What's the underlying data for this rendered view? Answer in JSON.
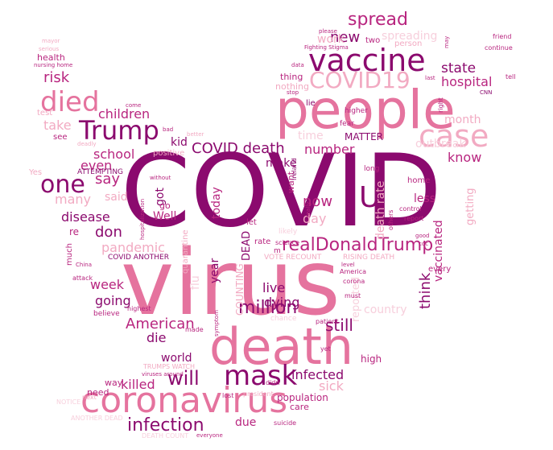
{
  "colors": {
    "dark": "#8b0a6e",
    "mid": "#b8257f",
    "pink": "#e5739e",
    "light": "#f2aac2",
    "pale": "#f7cfdc"
  },
  "words": [
    {
      "text": "COVID",
      "color": "dark",
      "vertical": false
    },
    {
      "text": "virus",
      "color": "pink",
      "vertical": false
    },
    {
      "text": "people",
      "color": "pink",
      "vertical": false
    },
    {
      "text": "death",
      "color": "pink",
      "vertical": false
    },
    {
      "text": "coronavirus",
      "color": "pink",
      "vertical": false
    },
    {
      "text": "vaccine",
      "color": "dark",
      "vertical": false
    },
    {
      "text": "COVID19",
      "color": "light",
      "vertical": false
    },
    {
      "text": "case",
      "color": "light",
      "vertical": false
    },
    {
      "text": "died",
      "color": "pink",
      "vertical": false
    },
    {
      "text": "Trump",
      "color": "dark",
      "vertical": false
    },
    {
      "text": "mask",
      "color": "dark",
      "vertical": false
    },
    {
      "text": "one",
      "color": "dark",
      "vertical": false
    },
    {
      "text": "U",
      "color": "dark",
      "vertical": false
    },
    {
      "text": "realDonaldTrump",
      "color": "mid",
      "vertical": false
    },
    {
      "text": "spread",
      "color": "mid",
      "vertical": false
    },
    {
      "text": "new",
      "color": "dark",
      "vertical": false
    },
    {
      "text": "COVID death",
      "color": "dark",
      "vertical": false
    },
    {
      "text": "infection",
      "color": "dark",
      "vertical": false
    },
    {
      "text": "million",
      "color": "dark",
      "vertical": false
    },
    {
      "text": "American",
      "color": "mid",
      "vertical": false
    },
    {
      "text": "children",
      "color": "mid",
      "vertical": false
    },
    {
      "text": "state",
      "color": "dark",
      "vertical": false
    },
    {
      "text": "hospital",
      "color": "mid",
      "vertical": false
    },
    {
      "text": "risk",
      "color": "mid",
      "vertical": false
    },
    {
      "text": "will",
      "color": "dark",
      "vertical": false
    },
    {
      "text": "killed",
      "color": "mid",
      "vertical": false
    },
    {
      "text": "infected",
      "color": "dark",
      "vertical": false
    },
    {
      "text": "sick",
      "color": "light",
      "vertical": false
    },
    {
      "text": "still",
      "color": "dark",
      "vertical": false
    },
    {
      "text": "know",
      "color": "mid",
      "vertical": false
    },
    {
      "text": "month",
      "color": "light",
      "vertical": false
    },
    {
      "text": "number",
      "color": "mid",
      "vertical": false
    },
    {
      "text": "MATTER",
      "color": "dark",
      "vertical": false
    },
    {
      "text": "school",
      "color": "mid",
      "vertical": false
    },
    {
      "text": "kid",
      "color": "dark",
      "vertical": false
    },
    {
      "text": "even",
      "color": "mid",
      "vertical": false
    },
    {
      "text": "say",
      "color": "mid",
      "vertical": false
    },
    {
      "text": "many",
      "color": "light",
      "vertical": false
    },
    {
      "text": "said",
      "color": "light",
      "vertical": false
    },
    {
      "text": "disease",
      "color": "dark",
      "vertical": false
    },
    {
      "text": "don",
      "color": "dark",
      "vertical": false
    },
    {
      "text": "pandemic",
      "color": "light",
      "vertical": false
    },
    {
      "text": "week",
      "color": "mid",
      "vertical": false
    },
    {
      "text": "going",
      "color": "dark",
      "vertical": false
    },
    {
      "text": "die",
      "color": "dark",
      "vertical": false
    },
    {
      "text": "world",
      "color": "dark",
      "vertical": false
    },
    {
      "text": "Well",
      "color": "mid",
      "vertical": false
    },
    {
      "text": "live",
      "color": "dark",
      "vertical": false
    },
    {
      "text": "dying",
      "color": "dark",
      "vertical": false
    },
    {
      "text": "think",
      "color": "dark",
      "vertical": true
    },
    {
      "text": "now",
      "color": "mid",
      "vertical": false
    },
    {
      "text": "day",
      "color": "light",
      "vertical": false
    },
    {
      "text": "less",
      "color": "mid",
      "vertical": false
    },
    {
      "text": "make",
      "color": "dark",
      "vertical": false
    },
    {
      "text": "got",
      "color": "dark",
      "vertical": true
    },
    {
      "text": "today",
      "color": "mid",
      "vertical": true
    },
    {
      "text": "year",
      "color": "dark",
      "vertical": true
    },
    {
      "text": "death rate",
      "color": "light",
      "vertical": true
    },
    {
      "text": "vaccinated",
      "color": "mid",
      "vertical": true
    },
    {
      "text": "getting",
      "color": "light",
      "vertical": true
    },
    {
      "text": "work",
      "color": "light",
      "vertical": false
    },
    {
      "text": "spreading",
      "color": "pale",
      "vertical": false
    },
    {
      "text": "take",
      "color": "light",
      "vertical": false
    },
    {
      "text": "time",
      "color": "pale",
      "vertical": false
    },
    {
      "text": "outbreak",
      "color": "pale",
      "vertical": false
    },
    {
      "text": "country",
      "color": "pale",
      "vertical": false
    },
    {
      "text": "reported",
      "color": "pale",
      "vertical": true
    },
    {
      "text": "DEAD",
      "color": "dark",
      "vertical": true
    },
    {
      "text": "flu",
      "color": "pale",
      "vertical": true
    },
    {
      "text": "COUNTING",
      "color": "light",
      "vertical": true
    },
    {
      "text": "need",
      "color": "mid",
      "vertical": false
    },
    {
      "text": "way",
      "color": "mid",
      "vertical": false
    },
    {
      "text": "due",
      "color": "mid",
      "vertical": false
    },
    {
      "text": "population",
      "color": "mid",
      "vertical": false
    },
    {
      "text": "high",
      "color": "mid",
      "vertical": false
    },
    {
      "text": "care",
      "color": "mid",
      "vertical": false
    },
    {
      "text": "health",
      "color": "mid",
      "vertical": false
    },
    {
      "text": "ATTEMPTING",
      "color": "dark",
      "vertical": false
    },
    {
      "text": "COVID ANOTHER",
      "color": "dark",
      "vertical": false
    },
    {
      "text": "VOTE RECOUNT",
      "color": "light",
      "vertical": false
    },
    {
      "text": "RISING DEATH",
      "color": "light",
      "vertical": false
    },
    {
      "text": "TRUMPS WATCH",
      "color": "light",
      "vertical": false
    },
    {
      "text": "DEATH COUNT",
      "color": "pale",
      "vertical": false
    },
    {
      "text": "ANOTHER DEAD",
      "color": "pale",
      "vertical": false
    },
    {
      "text": "NOTICE",
      "color": "pale",
      "vertical": false
    },
    {
      "text": "home",
      "color": "mid",
      "vertical": false
    },
    {
      "text": "want",
      "color": "mid",
      "vertical": true
    },
    {
      "text": "thing",
      "color": "mid",
      "vertical": false
    },
    {
      "text": "nothing",
      "color": "light",
      "vertical": false
    },
    {
      "text": "two",
      "color": "mid",
      "vertical": false
    },
    {
      "text": "person",
      "color": "light",
      "vertical": false
    },
    {
      "text": "every",
      "color": "mid",
      "vertical": false
    },
    {
      "text": "let",
      "color": "mid",
      "vertical": false
    },
    {
      "text": "rate",
      "color": "mid",
      "vertical": false
    },
    {
      "text": "positive",
      "color": "light",
      "vertical": false
    },
    {
      "text": "see",
      "color": "mid",
      "vertical": false
    },
    {
      "text": "test",
      "color": "light",
      "vertical": false
    },
    {
      "text": "Yes",
      "color": "light",
      "vertical": false
    },
    {
      "text": "much",
      "color": "mid",
      "vertical": true
    },
    {
      "text": "quarantine",
      "color": "light",
      "vertical": true
    },
    {
      "text": "re",
      "color": "mid",
      "vertical": false
    },
    {
      "text": "go",
      "color": "mid",
      "vertical": false
    },
    {
      "text": "Ireland",
      "color": "dark",
      "vertical": true
    },
    {
      "text": "lie",
      "color": "dark",
      "vertical": false
    },
    {
      "text": "higher",
      "color": "mid",
      "vertical": false
    },
    {
      "text": "fear",
      "color": "mid",
      "vertical": false
    },
    {
      "text": "long",
      "color": "mid",
      "vertical": false
    },
    {
      "text": "control",
      "color": "mid",
      "vertical": false
    },
    {
      "text": "report",
      "color": "mid",
      "vertical": false
    },
    {
      "text": "others",
      "color": "mid",
      "vertical": true
    },
    {
      "text": "science",
      "color": "mid",
      "vertical": false
    },
    {
      "text": "America",
      "color": "mid",
      "vertical": false
    },
    {
      "text": "corona",
      "color": "mid",
      "vertical": false
    },
    {
      "text": "must",
      "color": "mid",
      "vertical": false
    },
    {
      "text": "patient",
      "color": "mid",
      "vertical": false
    },
    {
      "text": "yet",
      "color": "mid",
      "vertical": false
    },
    {
      "text": "believe",
      "color": "mid",
      "vertical": false
    },
    {
      "text": "highest",
      "color": "mid",
      "vertical": false
    },
    {
      "text": "attack",
      "color": "mid",
      "vertical": false
    },
    {
      "text": "made",
      "color": "mid",
      "vertical": false
    },
    {
      "text": "symptom",
      "color": "mid",
      "vertical": false
    },
    {
      "text": "viruses around",
      "color": "mid",
      "vertical": false
    },
    {
      "text": "lost",
      "color": "mid",
      "vertical": false
    },
    {
      "text": "president",
      "color": "light",
      "vertical": false
    },
    {
      "text": "didn",
      "color": "mid",
      "vertical": false
    },
    {
      "text": "suicide",
      "color": "mid",
      "vertical": false
    },
    {
      "text": "everyone",
      "color": "mid",
      "vertical": false
    },
    {
      "text": "next",
      "color": "light",
      "vertical": false
    },
    {
      "text": "nursing home",
      "color": "mid",
      "vertical": false
    },
    {
      "text": "please",
      "color": "mid",
      "vertical": false
    },
    {
      "text": "Fighting Stigma",
      "color": "mid",
      "vertical": false
    },
    {
      "text": "friend",
      "color": "mid",
      "vertical": false
    },
    {
      "text": "continue",
      "color": "mid",
      "vertical": false
    },
    {
      "text": "tell",
      "color": "mid",
      "vertical": false
    },
    {
      "text": "CNN",
      "color": "dark",
      "vertical": false
    },
    {
      "text": "good",
      "color": "mid",
      "vertical": false
    },
    {
      "text": "cdc",
      "color": "mid",
      "vertical": false
    },
    {
      "text": "mayor",
      "color": "light",
      "vertical": false
    },
    {
      "text": "serious",
      "color": "light",
      "vertical": false
    },
    {
      "text": "data",
      "color": "mid",
      "vertical": false
    },
    {
      "text": "stop",
      "color": "mid",
      "vertical": false
    },
    {
      "text": "come",
      "color": "mid",
      "vertical": false
    },
    {
      "text": "last",
      "color": "mid",
      "vertical": false
    },
    {
      "text": "right",
      "color": "mid",
      "vertical": true
    },
    {
      "text": "without",
      "color": "mid",
      "vertical": false
    },
    {
      "text": "bad",
      "color": "mid",
      "vertical": false
    },
    {
      "text": "level",
      "color": "mid",
      "vertical": false
    },
    {
      "text": "China",
      "color": "mid",
      "vertical": false
    },
    {
      "text": "hospitalization",
      "color": "mid",
      "vertical": true
    },
    {
      "text": "better",
      "color": "light",
      "vertical": false
    },
    {
      "text": "deadly",
      "color": "light",
      "vertical": false
    },
    {
      "text": "likely",
      "color": "pale",
      "vertical": false
    },
    {
      "text": "chance",
      "color": "pale",
      "vertical": false
    },
    {
      "text": "really",
      "color": "mid",
      "vertical": true
    },
    {
      "text": "may",
      "color": "mid",
      "vertical": true
    },
    {
      "text": "m",
      "color": "mid",
      "vertical": false
    }
  ]
}
